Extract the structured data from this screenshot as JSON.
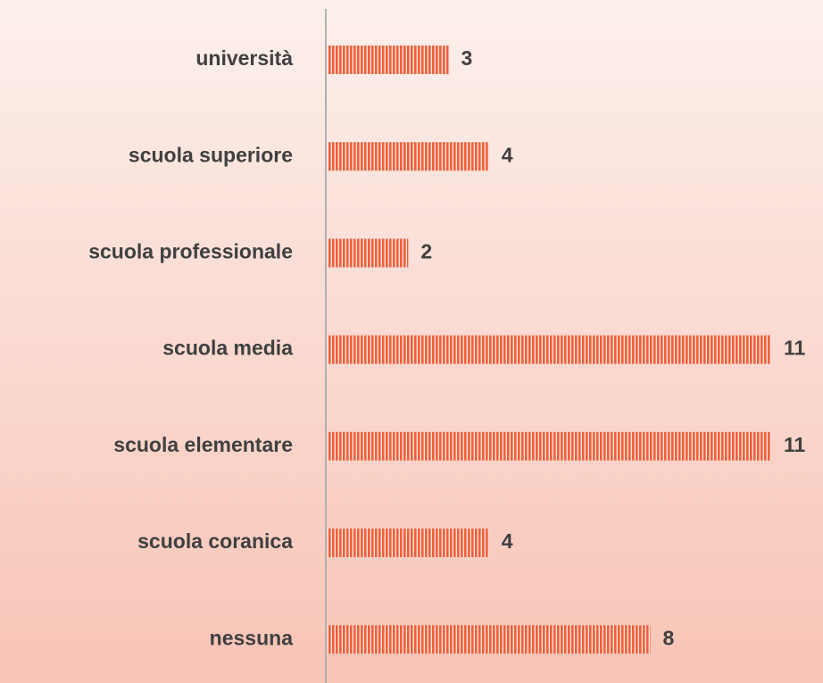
{
  "chart_data": {
    "type": "barh",
    "categories": [
      "università",
      "scuola superiore",
      "scuola professionale",
      "scuola media",
      "scuola elementare",
      "scuola coranica",
      "nessuna"
    ],
    "values": [
      3,
      4,
      2,
      11,
      11,
      4,
      8
    ],
    "color": "#f0603a"
  }
}
